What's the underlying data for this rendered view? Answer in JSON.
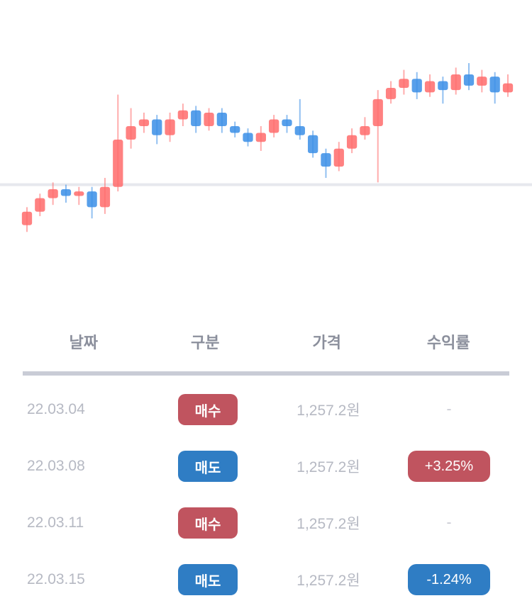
{
  "colors": {
    "up": "#ff6b6b",
    "down": "#3a8ee6",
    "badge_red": "#c0545f",
    "badge_blue": "#2f7dc4",
    "header_rule": "#c9ccd6"
  },
  "chart_data": {
    "type": "candlestick",
    "reference_line": 0.0,
    "candles": [
      {
        "o": -1.8,
        "c": -1.2,
        "h": -1.0,
        "l": -2.1
      },
      {
        "o": -1.2,
        "c": -0.6,
        "h": -0.4,
        "l": -1.4
      },
      {
        "o": -0.6,
        "c": -0.2,
        "h": 0.1,
        "l": -0.9
      },
      {
        "o": -0.2,
        "c": -0.5,
        "h": 0.0,
        "l": -0.8
      },
      {
        "o": -0.5,
        "c": -0.3,
        "h": -0.1,
        "l": -0.9
      },
      {
        "o": -0.3,
        "c": -1.0,
        "h": -0.1,
        "l": -1.5
      },
      {
        "o": -1.0,
        "c": -0.1,
        "h": 0.3,
        "l": -1.3
      },
      {
        "o": -0.1,
        "c": 2.0,
        "h": 4.0,
        "l": -0.3
      },
      {
        "o": 2.0,
        "c": 2.6,
        "h": 3.4,
        "l": 1.6
      },
      {
        "o": 2.6,
        "c": 2.9,
        "h": 3.2,
        "l": 2.3
      },
      {
        "o": 2.9,
        "c": 2.2,
        "h": 3.1,
        "l": 1.8
      },
      {
        "o": 2.2,
        "c": 2.9,
        "h": 3.2,
        "l": 1.9
      },
      {
        "o": 2.9,
        "c": 3.3,
        "h": 3.6,
        "l": 2.6
      },
      {
        "o": 3.3,
        "c": 2.6,
        "h": 3.5,
        "l": 2.3
      },
      {
        "o": 2.6,
        "c": 3.2,
        "h": 3.4,
        "l": 2.4
      },
      {
        "o": 3.2,
        "c": 2.6,
        "h": 3.4,
        "l": 2.3
      },
      {
        "o": 2.6,
        "c": 2.3,
        "h": 2.8,
        "l": 2.1
      },
      {
        "o": 2.3,
        "c": 1.9,
        "h": 2.5,
        "l": 1.7
      },
      {
        "o": 1.9,
        "c": 2.3,
        "h": 2.6,
        "l": 1.5
      },
      {
        "o": 2.3,
        "c": 2.9,
        "h": 3.1,
        "l": 2.1
      },
      {
        "o": 2.9,
        "c": 2.6,
        "h": 3.1,
        "l": 2.3
      },
      {
        "o": 2.6,
        "c": 2.2,
        "h": 3.8,
        "l": 2.0
      },
      {
        "o": 2.2,
        "c": 1.4,
        "h": 2.4,
        "l": 1.2
      },
      {
        "o": 1.4,
        "c": 0.8,
        "h": 1.6,
        "l": 0.3
      },
      {
        "o": 0.8,
        "c": 1.6,
        "h": 1.9,
        "l": 0.6
      },
      {
        "o": 1.6,
        "c": 2.2,
        "h": 2.5,
        "l": 1.4
      },
      {
        "o": 2.2,
        "c": 2.6,
        "h": 3.0,
        "l": 2.0
      },
      {
        "o": 2.6,
        "c": 3.8,
        "h": 4.2,
        "l": 0.1
      },
      {
        "o": 3.8,
        "c": 4.3,
        "h": 4.6,
        "l": 3.6
      },
      {
        "o": 4.3,
        "c": 4.7,
        "h": 5.1,
        "l": 4.0
      },
      {
        "o": 4.7,
        "c": 4.1,
        "h": 5.0,
        "l": 3.8
      },
      {
        "o": 4.1,
        "c": 4.6,
        "h": 4.9,
        "l": 3.9
      },
      {
        "o": 4.6,
        "c": 4.2,
        "h": 4.8,
        "l": 3.6
      },
      {
        "o": 4.2,
        "c": 4.9,
        "h": 5.2,
        "l": 4.0
      },
      {
        "o": 4.9,
        "c": 4.4,
        "h": 5.4,
        "l": 4.2
      },
      {
        "o": 4.4,
        "c": 4.8,
        "h": 5.1,
        "l": 4.1
      },
      {
        "o": 4.8,
        "c": 4.1,
        "h": 5.0,
        "l": 3.6
      },
      {
        "o": 4.1,
        "c": 4.5,
        "h": 4.9,
        "l": 3.9
      }
    ]
  },
  "table": {
    "headers": [
      "날짜",
      "구분",
      "가격",
      "수익률"
    ],
    "rows": [
      {
        "date": "22.03.04",
        "type": "매수",
        "type_color": "red",
        "price": "1,257.2원",
        "return": "-",
        "return_color": ""
      },
      {
        "date": "22.03.08",
        "type": "매도",
        "type_color": "blue",
        "price": "1,257.2원",
        "return": "+3.25%",
        "return_color": "red"
      },
      {
        "date": "22.03.11",
        "type": "매수",
        "type_color": "red",
        "price": "1,257.2원",
        "return": "-",
        "return_color": ""
      },
      {
        "date": "22.03.15",
        "type": "매도",
        "type_color": "blue",
        "price": "1,257.2원",
        "return": "-1.24%",
        "return_color": "blue"
      }
    ]
  }
}
